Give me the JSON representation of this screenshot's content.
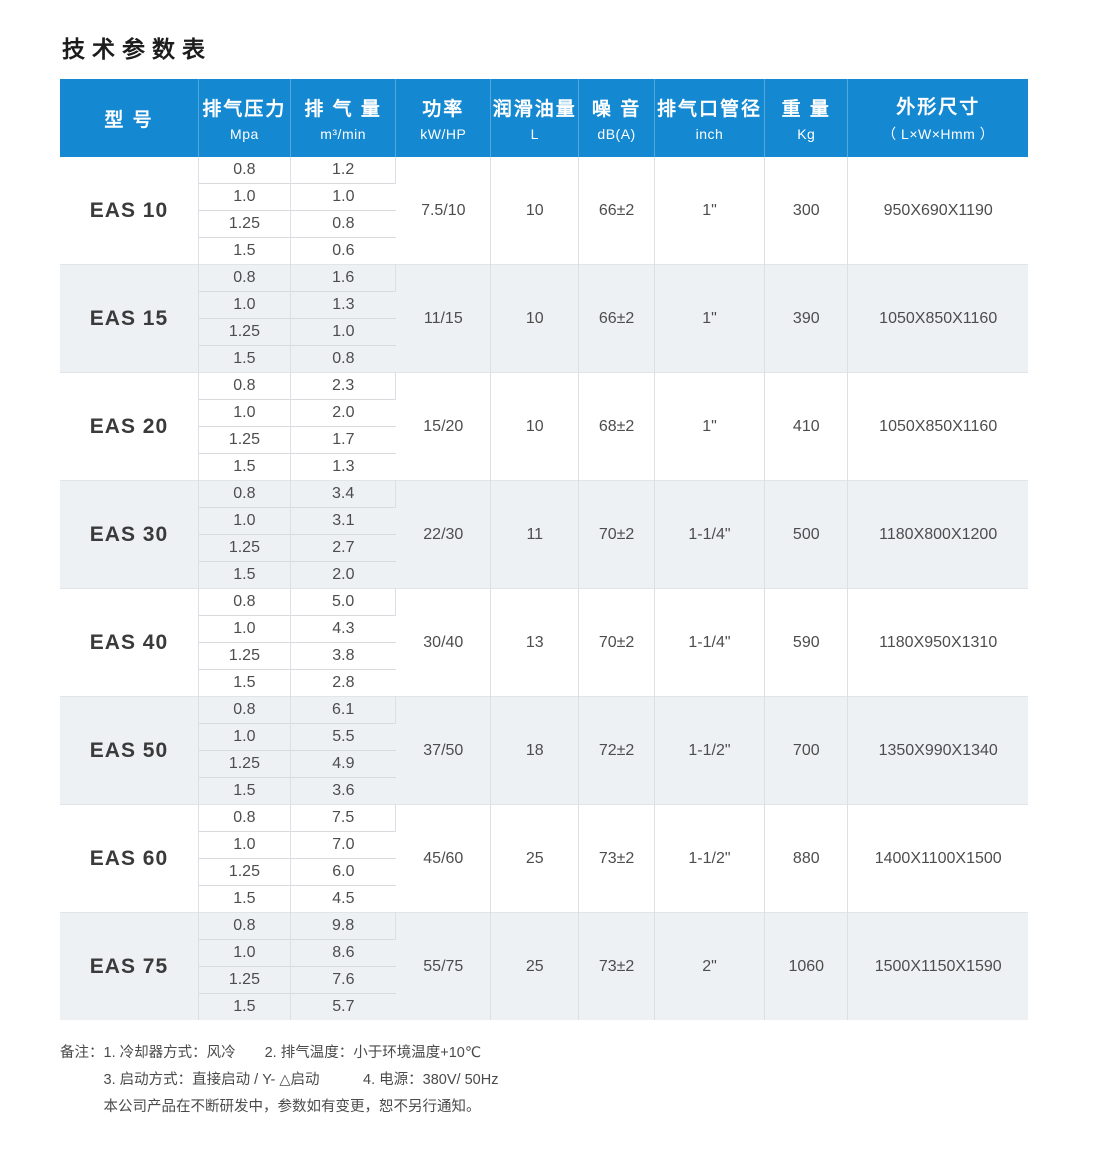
{
  "page": {
    "title": "技术参数表"
  },
  "colors": {
    "header_bg": "#1488d1",
    "header_divider": "#55a7dc",
    "alt_block_bg": "#edf1f3",
    "grid_line": "#dbe0e4"
  },
  "table": {
    "columns": [
      {
        "key": "model",
        "label": "型  号",
        "sub": ""
      },
      {
        "key": "pressure",
        "label": "排气压力",
        "sub": "Mpa"
      },
      {
        "key": "flow",
        "label": "排 气 量",
        "sub": "m³/min"
      },
      {
        "key": "power",
        "label": "功率",
        "sub": "kW/HP"
      },
      {
        "key": "oil",
        "label": "润滑油量",
        "sub": "L"
      },
      {
        "key": "noise",
        "label": "噪 音",
        "sub": "dB(A)"
      },
      {
        "key": "pipe",
        "label": "排气口管径",
        "sub": "inch"
      },
      {
        "key": "weight",
        "label": "重 量",
        "sub": "Kg"
      },
      {
        "key": "dims",
        "label": "外形尺寸",
        "sub": "（ L×W×Hmm ）"
      }
    ],
    "models": [
      {
        "name": "EAS 10",
        "pressure_flow": [
          [
            "0.8",
            "1.2"
          ],
          [
            "1.0",
            "1.0"
          ],
          [
            "1.25",
            "0.8"
          ],
          [
            "1.5",
            "0.6"
          ]
        ],
        "power": "7.5/10",
        "oil": "10",
        "noise": "66±2",
        "pipe": "1\"",
        "weight": "300",
        "dims": "950X690X1190"
      },
      {
        "name": "EAS 15",
        "pressure_flow": [
          [
            "0.8",
            "1.6"
          ],
          [
            "1.0",
            "1.3"
          ],
          [
            "1.25",
            "1.0"
          ],
          [
            "1.5",
            "0.8"
          ]
        ],
        "power": "11/15",
        "oil": "10",
        "noise": "66±2",
        "pipe": "1\"",
        "weight": "390",
        "dims": "1050X850X1160"
      },
      {
        "name": "EAS 20",
        "pressure_flow": [
          [
            "0.8",
            "2.3"
          ],
          [
            "1.0",
            "2.0"
          ],
          [
            "1.25",
            "1.7"
          ],
          [
            "1.5",
            "1.3"
          ]
        ],
        "power": "15/20",
        "oil": "10",
        "noise": "68±2",
        "pipe": "1\"",
        "weight": "410",
        "dims": "1050X850X1160"
      },
      {
        "name": "EAS 30",
        "pressure_flow": [
          [
            "0.8",
            "3.4"
          ],
          [
            "1.0",
            "3.1"
          ],
          [
            "1.25",
            "2.7"
          ],
          [
            "1.5",
            "2.0"
          ]
        ],
        "power": "22/30",
        "oil": "11",
        "noise": "70±2",
        "pipe": "1-1/4\"",
        "weight": "500",
        "dims": "1180X800X1200"
      },
      {
        "name": "EAS 40",
        "pressure_flow": [
          [
            "0.8",
            "5.0"
          ],
          [
            "1.0",
            "4.3"
          ],
          [
            "1.25",
            "3.8"
          ],
          [
            "1.5",
            "2.8"
          ]
        ],
        "power": "30/40",
        "oil": "13",
        "noise": "70±2",
        "pipe": "1-1/4\"",
        "weight": "590",
        "dims": "1180X950X1310"
      },
      {
        "name": "EAS 50",
        "pressure_flow": [
          [
            "0.8",
            "6.1"
          ],
          [
            "1.0",
            "5.5"
          ],
          [
            "1.25",
            "4.9"
          ],
          [
            "1.5",
            "3.6"
          ]
        ],
        "power": "37/50",
        "oil": "18",
        "noise": "72±2",
        "pipe": "1-1/2\"",
        "weight": "700",
        "dims": "1350X990X1340"
      },
      {
        "name": "EAS 60",
        "pressure_flow": [
          [
            "0.8",
            "7.5"
          ],
          [
            "1.0",
            "7.0"
          ],
          [
            "1.25",
            "6.0"
          ],
          [
            "1.5",
            "4.5"
          ]
        ],
        "power": "45/60",
        "oil": "25",
        "noise": "73±2",
        "pipe": "1-1/2\"",
        "weight": "880",
        "dims": "1400X1100X1500"
      },
      {
        "name": "EAS 75",
        "pressure_flow": [
          [
            "0.8",
            "9.8"
          ],
          [
            "1.0",
            "8.6"
          ],
          [
            "1.25",
            "7.6"
          ],
          [
            "1.5",
            "5.7"
          ]
        ],
        "power": "55/75",
        "oil": "25",
        "noise": "73±2",
        "pipe": "2\"",
        "weight": "1060",
        "dims": "1500X1150X1590"
      }
    ]
  },
  "notes": {
    "label": "备注：",
    "lines": [
      "1. 冷却器方式：风冷　　2. 排气温度：小于环境温度+10℃",
      "3. 启动方式：直接启动 / Y- △启动　　　4. 电源：380V/ 50Hz",
      "本公司产品在不断研发中，参数如有变更，恕不另行通知。"
    ]
  }
}
